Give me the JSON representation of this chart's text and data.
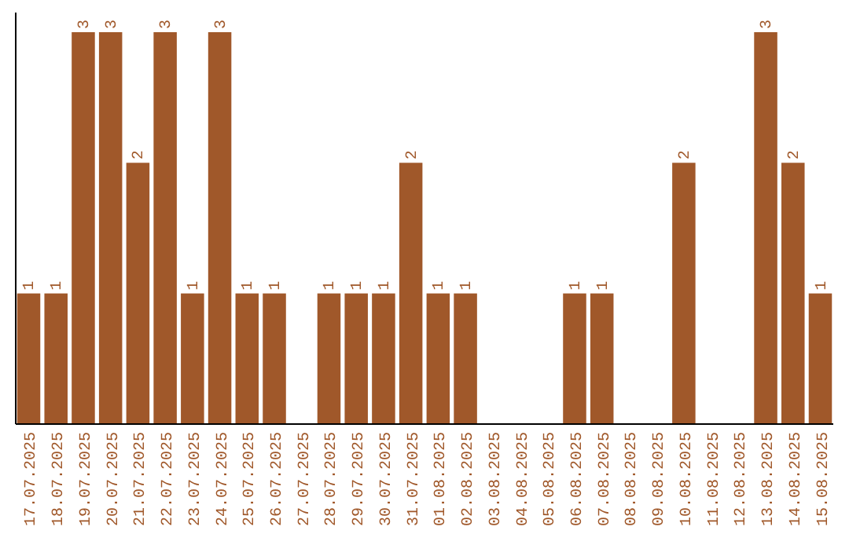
{
  "chart_data": {
    "type": "bar",
    "categories": [
      "17.07.2025",
      "18.07.2025",
      "19.07.2025",
      "20.07.2025",
      "21.07.2025",
      "22.07.2025",
      "23.07.2025",
      "24.07.2025",
      "25.07.2025",
      "26.07.2025",
      "27.07.2025",
      "28.07.2025",
      "29.07.2025",
      "30.07.2025",
      "31.07.2025",
      "01.08.2025",
      "02.08.2025",
      "03.08.2025",
      "04.08.2025",
      "05.08.2025",
      "06.08.2025",
      "07.08.2025",
      "08.08.2025",
      "09.08.2025",
      "10.08.2025",
      "11.08.2025",
      "12.08.2025",
      "13.08.2025",
      "14.08.2025",
      "15.08.2025"
    ],
    "values": [
      1,
      1,
      3,
      3,
      2,
      3,
      1,
      3,
      1,
      1,
      0,
      1,
      1,
      1,
      2,
      1,
      1,
      0,
      0,
      0,
      1,
      1,
      0,
      0,
      2,
      0,
      0,
      3,
      2,
      1
    ],
    "value_labels": [
      "1",
      "1",
      "3",
      "3",
      "2",
      "3",
      "1",
      "3",
      "1",
      "1",
      null,
      "1",
      "1",
      "1",
      "2",
      "1",
      "1",
      null,
      null,
      null,
      "1",
      "1",
      null,
      null,
      "2",
      null,
      null,
      "3",
      "2",
      "1"
    ],
    "color": "#a0582a"
  }
}
